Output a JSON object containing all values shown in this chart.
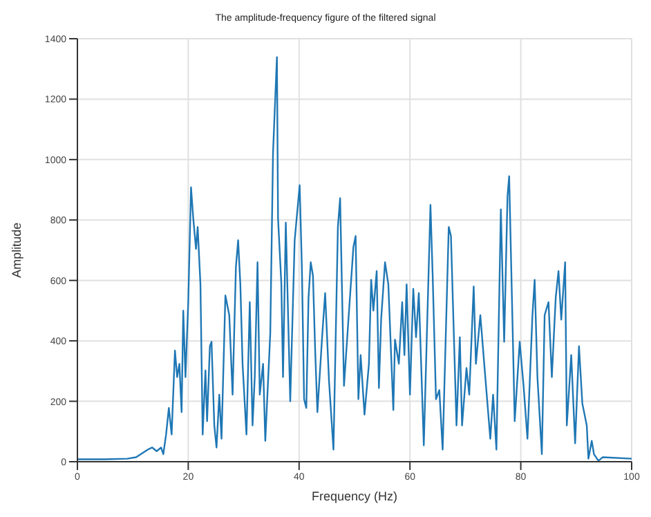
{
  "chart_data": {
    "type": "line",
    "title": "The amplitude-frequency figure of the filtered signal",
    "xlabel": "Frequency (Hz)",
    "ylabel": "Amplitude",
    "xlim": [
      0,
      100
    ],
    "xticks": [
      0,
      20,
      40,
      60,
      80,
      100
    ],
    "ylim": [
      0,
      1400
    ],
    "yticks": [
      0,
      200,
      400,
      600,
      800,
      1000,
      1200,
      1400
    ],
    "grid": true,
    "marker": "none",
    "line_style": "solid",
    "series": [
      {
        "color": "#1f77b4",
        "x": [
          0,
          5,
          9,
          10.6,
          12.7,
          13.5,
          14.3,
          15.1,
          15.5,
          16,
          16.5,
          17,
          17.6,
          18,
          18.4,
          18.8,
          19.1,
          19.5,
          20,
          20.5,
          20.9,
          21.4,
          21.7,
          22.2,
          22.6,
          23.1,
          23.4,
          23.9,
          24.2,
          24.7,
          25.1,
          25.6,
          26,
          26.7,
          27.4,
          28,
          28.6,
          29,
          29.4,
          29.8,
          30.5,
          31.1,
          31.6,
          32,
          32.5,
          32.9,
          33.5,
          33.9,
          34.8,
          35.3,
          36,
          36.2,
          36.8,
          37.1,
          37.6,
          38.4,
          39.2,
          40.1,
          40.5,
          40.9,
          41.3,
          41.7,
          42.1,
          42.5,
          42.9,
          43.3,
          44.2,
          44.7,
          45.4,
          46.2,
          47,
          47.4,
          48.1,
          48.9,
          49.8,
          50.2,
          50.7,
          51.1,
          51.8,
          52.6,
          53,
          53.4,
          54,
          54.4,
          54.8,
          55.5,
          56.1,
          57,
          57.3,
          58,
          58.6,
          59,
          59.4,
          60,
          60.6,
          61.1,
          61.6,
          62.5,
          63.7,
          64.1,
          64.7,
          65.3,
          65.9,
          67,
          67.4,
          68.4,
          69,
          69.4,
          70.2,
          70.7,
          71.5,
          71.9,
          72.7,
          73.4,
          74.5,
          75,
          75.6,
          76.4,
          77,
          77.6,
          77.9,
          78.6,
          78.9,
          79.8,
          80.5,
          81.2,
          82.1,
          82.5,
          83,
          83.8,
          84.3,
          85,
          85.6,
          86.3,
          86.8,
          87.3,
          88,
          88.3,
          89.1,
          89.8,
          90.5,
          91.1,
          91.9,
          92.2,
          92.8,
          93.2,
          94,
          94.8,
          100
        ],
        "values": [
          8,
          8,
          10,
          15,
          40,
          47,
          35,
          47,
          25,
          90,
          178,
          90,
          368,
          280,
          324,
          164,
          500,
          280,
          528,
          908,
          806,
          704,
          777,
          587,
          90,
          302,
          134,
          382,
          397,
          120,
          47,
          222,
          76,
          550,
          485,
          222,
          645,
          733,
          587,
          324,
          90,
          528,
          120,
          280,
          660,
          222,
          324,
          69,
          426,
          1025,
          1339,
          806,
          587,
          280,
          791,
          200,
          733,
          915,
          645,
          207,
          178,
          543,
          660,
          616,
          368,
          164,
          426,
          558,
          266,
          40,
          777,
          872,
          251,
          470,
          711,
          747,
          207,
          353,
          156,
          324,
          602,
          500,
          631,
          244,
          470,
          660,
          587,
          171,
          404,
          324,
          528,
          353,
          587,
          222,
          572,
          412,
          558,
          54,
          850,
          616,
          207,
          237,
          40,
          777,
          747,
          120,
          412,
          120,
          310,
          222,
          580,
          324,
          485,
          324,
          76,
          222,
          40,
          835,
          397,
          879,
          945,
          382,
          134,
          397,
          251,
          76,
          485,
          602,
          280,
          25,
          485,
          528,
          280,
          543,
          631,
          470,
          660,
          120,
          353,
          61,
          382,
          193,
          120,
          10,
          69,
          25,
          3,
          15,
          10
        ]
      }
    ]
  }
}
